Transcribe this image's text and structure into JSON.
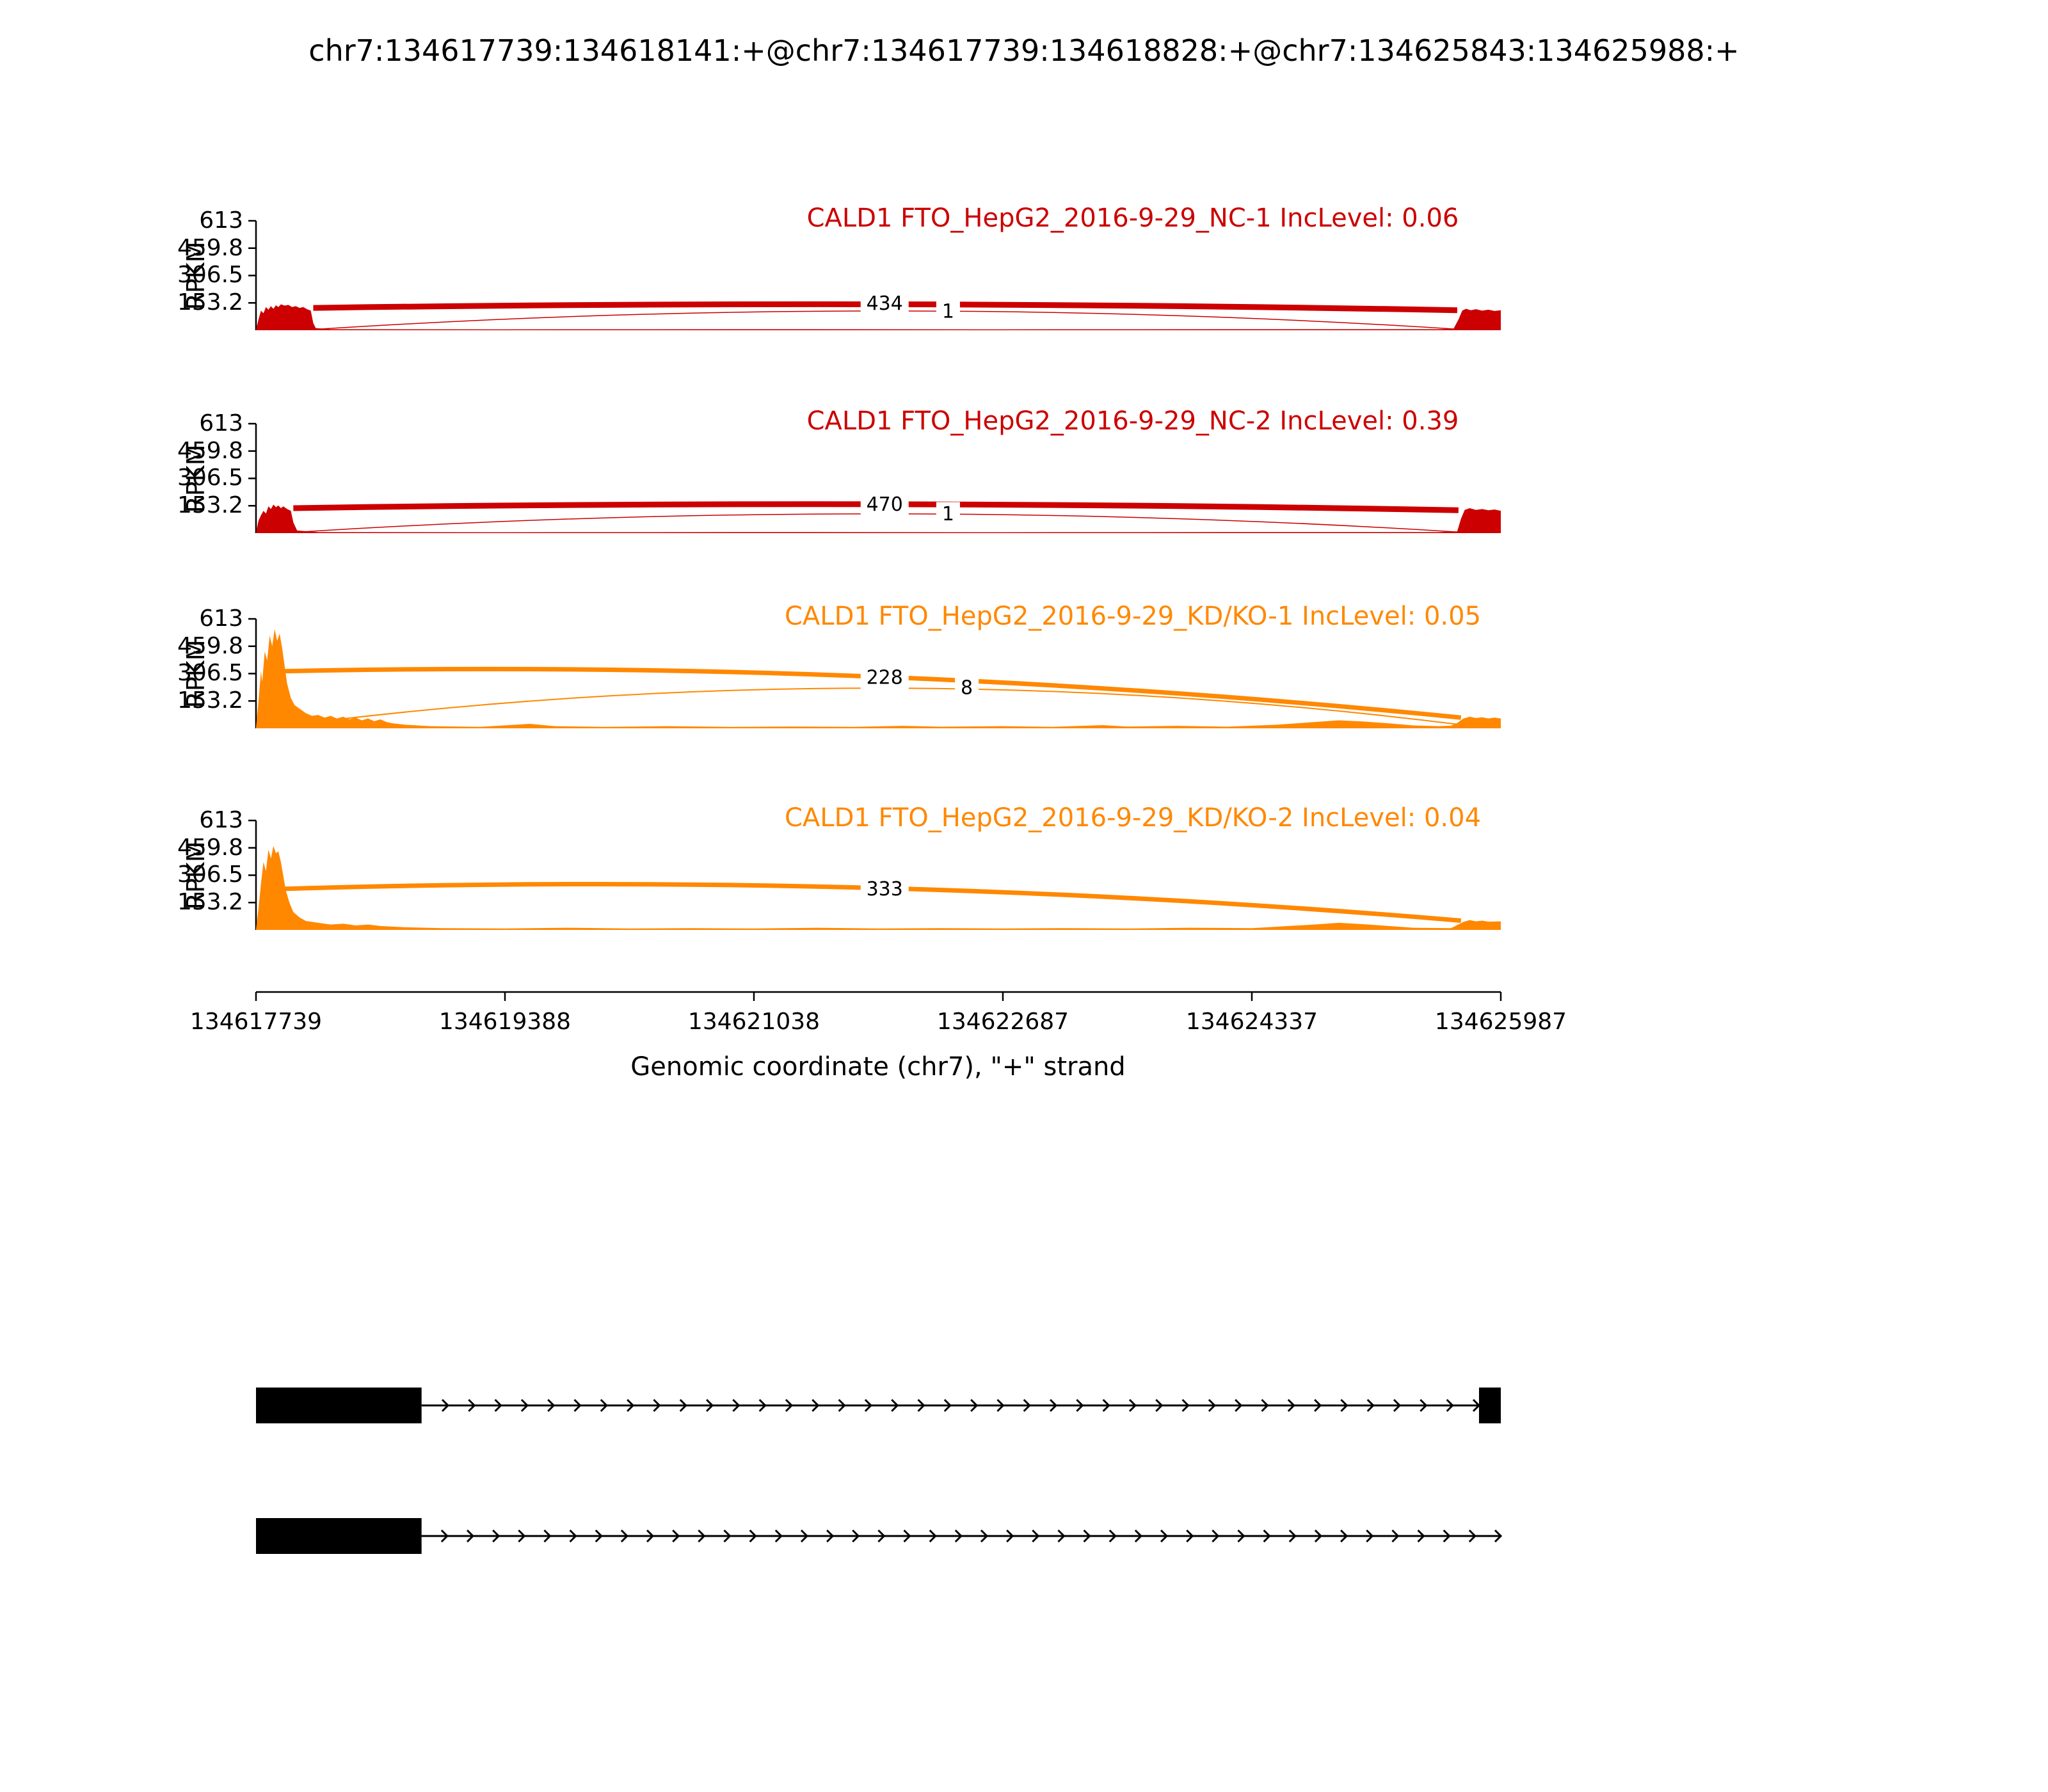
{
  "chart_data": {
    "type": "area",
    "subtype": "sashimi-plot",
    "title": "chr7:134617739:134618141:+@chr7:134617739:134618828:+@chr7:134625843:134625988:+",
    "xlabel": "Genomic coordinate (chr7), \"+\" strand",
    "ylabel": "RPKM",
    "x_ticks": [
      134617739,
      134619388,
      134621038,
      134622687,
      134624337,
      134625987
    ],
    "y_ticks": [
      613,
      459.8,
      306.5,
      153.2
    ],
    "xlim": [
      134617739,
      134625987
    ],
    "ylim": [
      0,
      613
    ],
    "grid": false,
    "tracks": [
      {
        "label": "CALD1 FTO_HepG2_2016-9-29_NC-1 IncLevel: 0.06",
        "inc_level": 0.06,
        "color": "#CC0000",
        "junctions": [
          {
            "count": 434,
            "x1": 0.046,
            "y1": 125,
            "x2": 0.965,
            "y2": 112,
            "ctrl": 172,
            "w": 9,
            "lx": 0.505,
            "ly": 148
          },
          {
            "count": 1,
            "x1": 0.05,
            "y1": 6,
            "x2": 0.965,
            "y2": 6,
            "ctrl": 210,
            "w": 1.5,
            "lx": 0.556,
            "ly": 104
          }
        ],
        "coverage": [
          [
            0,
            2
          ],
          [
            0.002,
            60
          ],
          [
            0.004,
            110
          ],
          [
            0.006,
            95
          ],
          [
            0.008,
            130
          ],
          [
            0.01,
            115
          ],
          [
            0.012,
            135
          ],
          [
            0.014,
            120
          ],
          [
            0.016,
            140
          ],
          [
            0.018,
            130
          ],
          [
            0.02,
            145
          ],
          [
            0.023,
            138
          ],
          [
            0.026,
            142
          ],
          [
            0.029,
            130
          ],
          [
            0.032,
            135
          ],
          [
            0.035,
            125
          ],
          [
            0.038,
            130
          ],
          [
            0.041,
            118
          ],
          [
            0.044,
            110
          ],
          [
            0.046,
            40
          ],
          [
            0.048,
            12
          ],
          [
            0.06,
            6
          ],
          [
            0.2,
            5
          ],
          [
            0.4,
            6
          ],
          [
            0.6,
            5
          ],
          [
            0.8,
            6
          ],
          [
            0.95,
            6
          ],
          [
            0.962,
            8
          ],
          [
            0.966,
            60
          ],
          [
            0.969,
            110
          ],
          [
            0.972,
            120
          ],
          [
            0.976,
            112
          ],
          [
            0.98,
            118
          ],
          [
            0.985,
            110
          ],
          [
            0.99,
            115
          ],
          [
            0.995,
            108
          ],
          [
            1,
            112
          ]
        ]
      },
      {
        "label": "CALD1 FTO_HepG2_2016-9-29_NC-2 IncLevel: 0.39",
        "inc_level": 0.39,
        "color": "#CC0000",
        "junctions": [
          {
            "count": 470,
            "x1": 0.03,
            "y1": 140,
            "x2": 0.966,
            "y2": 128,
            "ctrl": 190,
            "w": 9,
            "lx": 0.505,
            "ly": 160
          },
          {
            "count": 1,
            "x1": 0.034,
            "y1": 6,
            "x2": 0.966,
            "y2": 6,
            "ctrl": 210,
            "w": 1.5,
            "lx": 0.556,
            "ly": 106
          }
        ],
        "coverage": [
          [
            0,
            2
          ],
          [
            0.002,
            70
          ],
          [
            0.004,
            100
          ],
          [
            0.006,
            125
          ],
          [
            0.008,
            110
          ],
          [
            0.01,
            150
          ],
          [
            0.012,
            135
          ],
          [
            0.014,
            160
          ],
          [
            0.016,
            145
          ],
          [
            0.018,
            155
          ],
          [
            0.02,
            140
          ],
          [
            0.022,
            150
          ],
          [
            0.025,
            135
          ],
          [
            0.028,
            125
          ],
          [
            0.03,
            60
          ],
          [
            0.033,
            15
          ],
          [
            0.05,
            6
          ],
          [
            0.2,
            5
          ],
          [
            0.4,
            6
          ],
          [
            0.6,
            5
          ],
          [
            0.8,
            6
          ],
          [
            0.95,
            6
          ],
          [
            0.965,
            10
          ],
          [
            0.968,
            80
          ],
          [
            0.971,
            130
          ],
          [
            0.975,
            140
          ],
          [
            0.98,
            130
          ],
          [
            0.985,
            135
          ],
          [
            0.99,
            128
          ],
          [
            0.995,
            132
          ],
          [
            1,
            125
          ]
        ]
      },
      {
        "label": "CALD1 FTO_HepG2_2016-9-29_KD/KO-1 IncLevel: 0.05",
        "inc_level": 0.05,
        "color": "#FF8800",
        "junctions": [
          {
            "count": 228,
            "x1": 0.022,
            "y1": 320,
            "x2": 0.968,
            "y2": 60,
            "ctrl": 390,
            "w": 7,
            "lx": 0.505,
            "ly": 283
          },
          {
            "count": 8,
            "x1": 0.03,
            "y1": 20,
            "x2": 0.968,
            "y2": 20,
            "ctrl": 430,
            "w": 2,
            "lx": 0.571,
            "ly": 226
          }
        ],
        "coverage": [
          [
            0,
            5
          ],
          [
            0.002,
            150
          ],
          [
            0.004,
            320
          ],
          [
            0.005,
            260
          ],
          [
            0.007,
            430
          ],
          [
            0.009,
            380
          ],
          [
            0.011,
            520
          ],
          [
            0.013,
            460
          ],
          [
            0.015,
            555
          ],
          [
            0.017,
            490
          ],
          [
            0.019,
            530
          ],
          [
            0.021,
            450
          ],
          [
            0.023,
            350
          ],
          [
            0.025,
            250
          ],
          [
            0.028,
            170
          ],
          [
            0.031,
            130
          ],
          [
            0.035,
            110
          ],
          [
            0.04,
            85
          ],
          [
            0.045,
            70
          ],
          [
            0.05,
            75
          ],
          [
            0.055,
            60
          ],
          [
            0.06,
            70
          ],
          [
            0.065,
            55
          ],
          [
            0.07,
            65
          ],
          [
            0.075,
            50
          ],
          [
            0.08,
            60
          ],
          [
            0.085,
            45
          ],
          [
            0.09,
            55
          ],
          [
            0.095,
            40
          ],
          [
            0.1,
            50
          ],
          [
            0.105,
            35
          ],
          [
            0.11,
            28
          ],
          [
            0.12,
            20
          ],
          [
            0.14,
            12
          ],
          [
            0.18,
            8
          ],
          [
            0.22,
            25
          ],
          [
            0.24,
            12
          ],
          [
            0.28,
            8
          ],
          [
            0.33,
            12
          ],
          [
            0.38,
            8
          ],
          [
            0.43,
            10
          ],
          [
            0.48,
            8
          ],
          [
            0.52,
            14
          ],
          [
            0.55,
            9
          ],
          [
            0.6,
            12
          ],
          [
            0.64,
            8
          ],
          [
            0.68,
            18
          ],
          [
            0.7,
            10
          ],
          [
            0.74,
            14
          ],
          [
            0.78,
            9
          ],
          [
            0.82,
            20
          ],
          [
            0.85,
            35
          ],
          [
            0.87,
            45
          ],
          [
            0.89,
            38
          ],
          [
            0.91,
            28
          ],
          [
            0.93,
            16
          ],
          [
            0.95,
            12
          ],
          [
            0.96,
            15
          ],
          [
            0.965,
            30
          ],
          [
            0.97,
            55
          ],
          [
            0.975,
            65
          ],
          [
            0.98,
            58
          ],
          [
            0.985,
            62
          ],
          [
            0.99,
            55
          ],
          [
            0.995,
            60
          ],
          [
            1,
            55
          ]
        ]
      },
      {
        "label": "CALD1 FTO_HepG2_2016-9-29_KD/KO-2 IncLevel: 0.04",
        "inc_level": 0.04,
        "color": "#FF8800",
        "junctions": [
          {
            "count": 333,
            "x1": 0.022,
            "y1": 230,
            "x2": 0.968,
            "y2": 52,
            "ctrl": 330,
            "w": 7,
            "lx": 0.505,
            "ly": 228
          }
        ],
        "coverage": [
          [
            0,
            5
          ],
          [
            0.002,
            120
          ],
          [
            0.004,
            260
          ],
          [
            0.006,
            380
          ],
          [
            0.008,
            330
          ],
          [
            0.01,
            450
          ],
          [
            0.012,
            400
          ],
          [
            0.014,
            470
          ],
          [
            0.016,
            430
          ],
          [
            0.018,
            440
          ],
          [
            0.02,
            380
          ],
          [
            0.022,
            300
          ],
          [
            0.024,
            220
          ],
          [
            0.027,
            150
          ],
          [
            0.03,
            100
          ],
          [
            0.035,
            70
          ],
          [
            0.04,
            50
          ],
          [
            0.05,
            40
          ],
          [
            0.06,
            30
          ],
          [
            0.07,
            35
          ],
          [
            0.08,
            25
          ],
          [
            0.09,
            30
          ],
          [
            0.1,
            22
          ],
          [
            0.12,
            15
          ],
          [
            0.15,
            10
          ],
          [
            0.2,
            8
          ],
          [
            0.25,
            12
          ],
          [
            0.3,
            8
          ],
          [
            0.35,
            10
          ],
          [
            0.4,
            8
          ],
          [
            0.45,
            12
          ],
          [
            0.5,
            8
          ],
          [
            0.55,
            10
          ],
          [
            0.6,
            8
          ],
          [
            0.65,
            10
          ],
          [
            0.7,
            8
          ],
          [
            0.75,
            12
          ],
          [
            0.8,
            10
          ],
          [
            0.82,
            18
          ],
          [
            0.85,
            30
          ],
          [
            0.87,
            40
          ],
          [
            0.89,
            32
          ],
          [
            0.91,
            22
          ],
          [
            0.93,
            12
          ],
          [
            0.96,
            10
          ],
          [
            0.97,
            45
          ],
          [
            0.975,
            55
          ],
          [
            0.98,
            48
          ],
          [
            0.985,
            52
          ],
          [
            0.99,
            46
          ],
          [
            1,
            48
          ]
        ]
      }
    ],
    "transcripts": [
      {
        "exons": [
          [
            0,
            0.133
          ],
          [
            0.9825,
            1.0
          ]
        ],
        "line": [
          0.133,
          0.9825
        ],
        "arrows": 40
      },
      {
        "exons": [
          [
            0,
            0.133
          ]
        ],
        "line": [
          0.133,
          1.0
        ],
        "arrows": 42
      }
    ]
  }
}
